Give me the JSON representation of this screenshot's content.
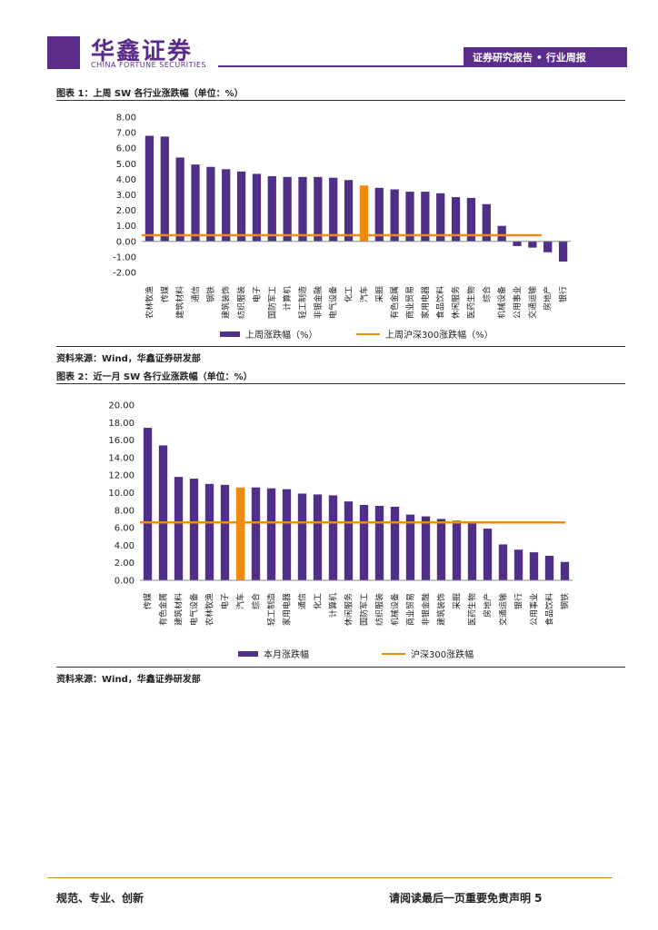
{
  "header": {
    "logo_cn": "华鑫证券",
    "logo_en": "CHINA FORTUNE SECURITIES",
    "report_type": "证券研究报告 • 行业周报"
  },
  "colors": {
    "brand": "#5b2c8a",
    "bar": "#4f2f88",
    "highlight": "#f08a10",
    "line": "#f08a10"
  },
  "figure1": {
    "caption": "图表 1：上周 SW 各行业涨跌幅（单位：%）",
    "source": "资料来源：Wind，华鑫证券研发部"
  },
  "figure2": {
    "caption": "图表 2：近一月 SW 各行业涨跌幅（单位：%）",
    "source": "资料来源：Wind，华鑫证券研发部"
  },
  "chart_data": [
    {
      "type": "bar",
      "categories": [
        "农林牧渔",
        "传媒",
        "建筑材料",
        "通信",
        "钢铁",
        "建筑装饰",
        "纺织服装",
        "电子",
        "国防军工",
        "计算机",
        "轻工制造",
        "非银金融",
        "电气设备",
        "化工",
        "汽车",
        "采掘",
        "有色金属",
        "商业贸易",
        "家用电器",
        "食品饮料",
        "休闲服务",
        "医药生物",
        "综合",
        "机械设备",
        "公用事业",
        "交通运输",
        "房地产",
        "银行"
      ],
      "values": [
        6.8,
        6.75,
        5.4,
        4.95,
        4.8,
        4.65,
        4.5,
        4.35,
        4.2,
        4.15,
        4.15,
        4.15,
        4.1,
        3.95,
        3.6,
        3.45,
        3.35,
        3.2,
        3.2,
        3.1,
        2.85,
        2.8,
        2.4,
        1.0,
        -0.3,
        -0.4,
        -0.7,
        -1.3
      ],
      "highlight_category": "汽车",
      "series": [
        {
          "name": "上周涨跌幅（%）",
          "kind": "bar"
        },
        {
          "name": "上周沪深300涨跌幅（%）",
          "kind": "line",
          "value": 0.4
        }
      ],
      "yticks": [
        "8.00",
        "7.00",
        "6.00",
        "5.00",
        "4.00",
        "3.00",
        "2.00",
        "1.00",
        "0.00",
        "-1.00",
        "-2.00"
      ],
      "ylim": [
        -2,
        8
      ],
      "title": "",
      "xlabel": "",
      "ylabel": ""
    },
    {
      "type": "bar",
      "categories": [
        "传媒",
        "有色金属",
        "建筑材料",
        "电气设备",
        "农林牧渔",
        "电子",
        "汽车",
        "综合",
        "轻工制造",
        "家用电器",
        "通信",
        "化工",
        "计算机",
        "休闲服务",
        "国防军工",
        "纺织服装",
        "机械设备",
        "商业贸易",
        "非银金融",
        "建筑装饰",
        "采掘",
        "医药生物",
        "房地产",
        "交通运输",
        "银行",
        "公用事业",
        "食品饮料",
        "钢铁"
      ],
      "values": [
        17.4,
        15.4,
        11.8,
        11.6,
        11.0,
        10.9,
        10.6,
        10.6,
        10.5,
        10.4,
        9.9,
        9.8,
        9.7,
        9.0,
        8.6,
        8.5,
        8.4,
        7.5,
        7.3,
        7.0,
        6.8,
        6.7,
        5.9,
        4.1,
        3.5,
        3.2,
        2.8,
        2.1
      ],
      "highlight_category": "汽车",
      "series": [
        {
          "name": "本月涨跌幅",
          "kind": "bar"
        },
        {
          "name": "沪深300涨跌幅",
          "kind": "line",
          "value": 6.6
        }
      ],
      "yticks": [
        "20.00",
        "18.00",
        "16.00",
        "14.00",
        "12.00",
        "10.00",
        "8.00",
        "6.00",
        "4.00",
        "2.00",
        "0.00"
      ],
      "ylim": [
        0,
        20
      ],
      "title": "",
      "xlabel": "",
      "ylabel": ""
    }
  ],
  "footer": {
    "left": "规范、专业、创新",
    "right": "请阅读最后一页重要免责声明 5"
  }
}
